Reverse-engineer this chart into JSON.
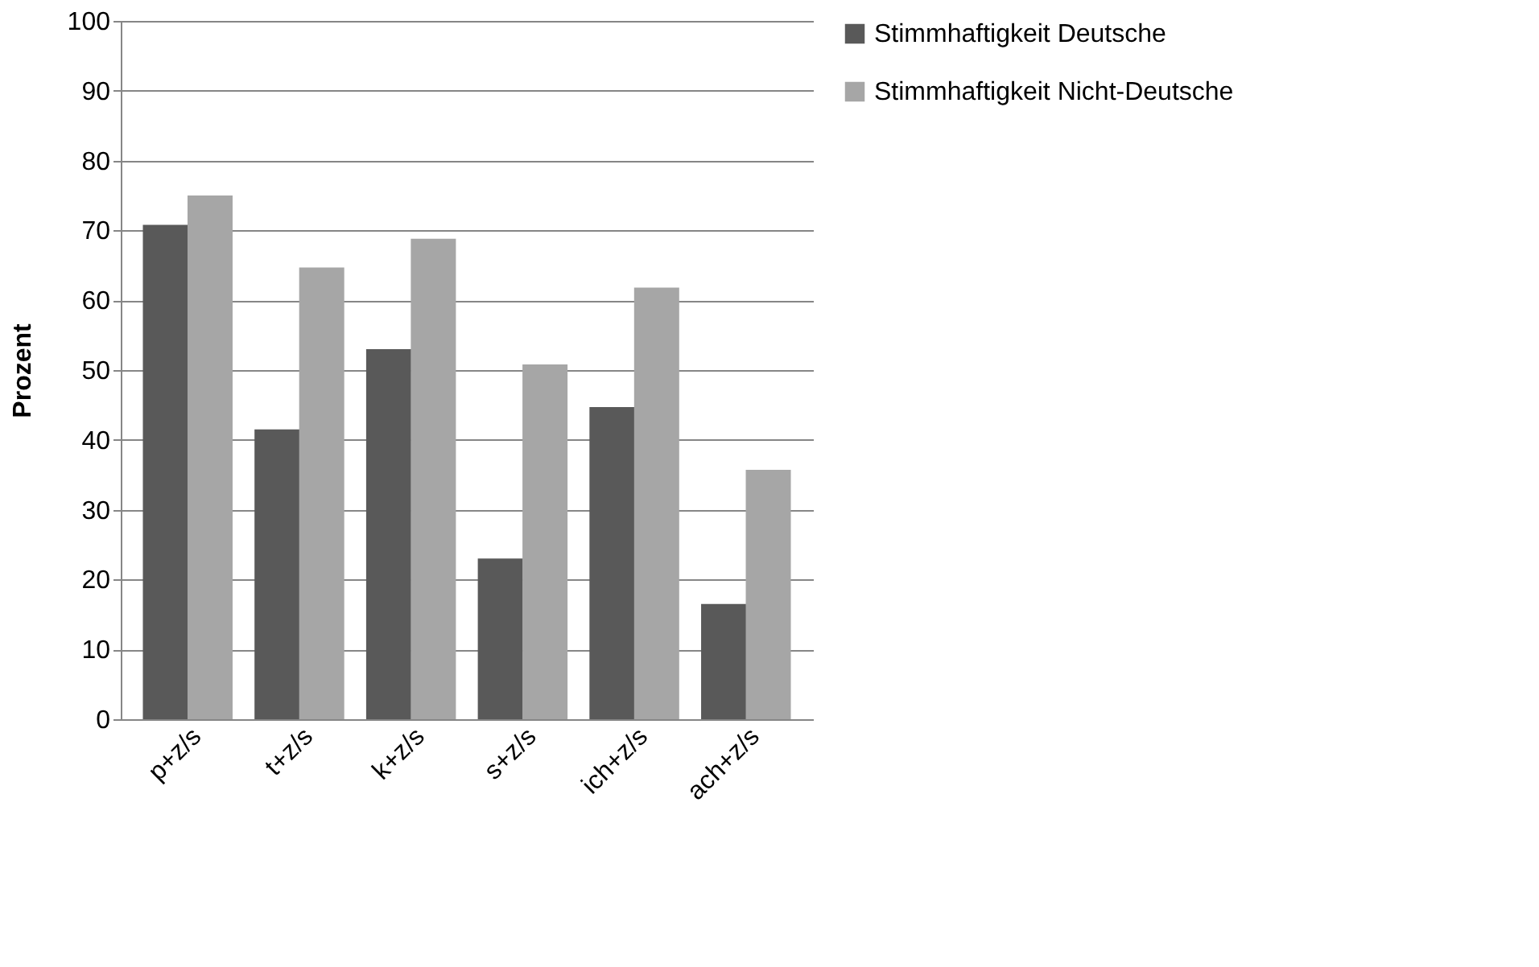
{
  "chart_data": {
    "type": "bar",
    "ylabel": "Prozent",
    "categories": [
      "p+z/s",
      "t+z/s",
      "k+z/s",
      "s+z/s",
      "ich+z/s",
      "ach+z/s"
    ],
    "series": [
      {
        "name": "Stimmhaftigkeit Deutsche",
        "color": "#595959",
        "values": [
          70.8,
          41.5,
          53,
          23,
          44.7,
          16.5
        ]
      },
      {
        "name": "Stimmhaftigkeit Nicht-Deutsche",
        "color": "#a6a6a6",
        "values": [
          75,
          64.7,
          68.8,
          50.8,
          61.8,
          35.7
        ]
      }
    ],
    "ylim": [
      0,
      100
    ],
    "yticks": [
      0,
      10,
      20,
      30,
      40,
      50,
      60,
      70,
      80,
      90,
      100
    ],
    "grid": "y",
    "legend": "right"
  }
}
